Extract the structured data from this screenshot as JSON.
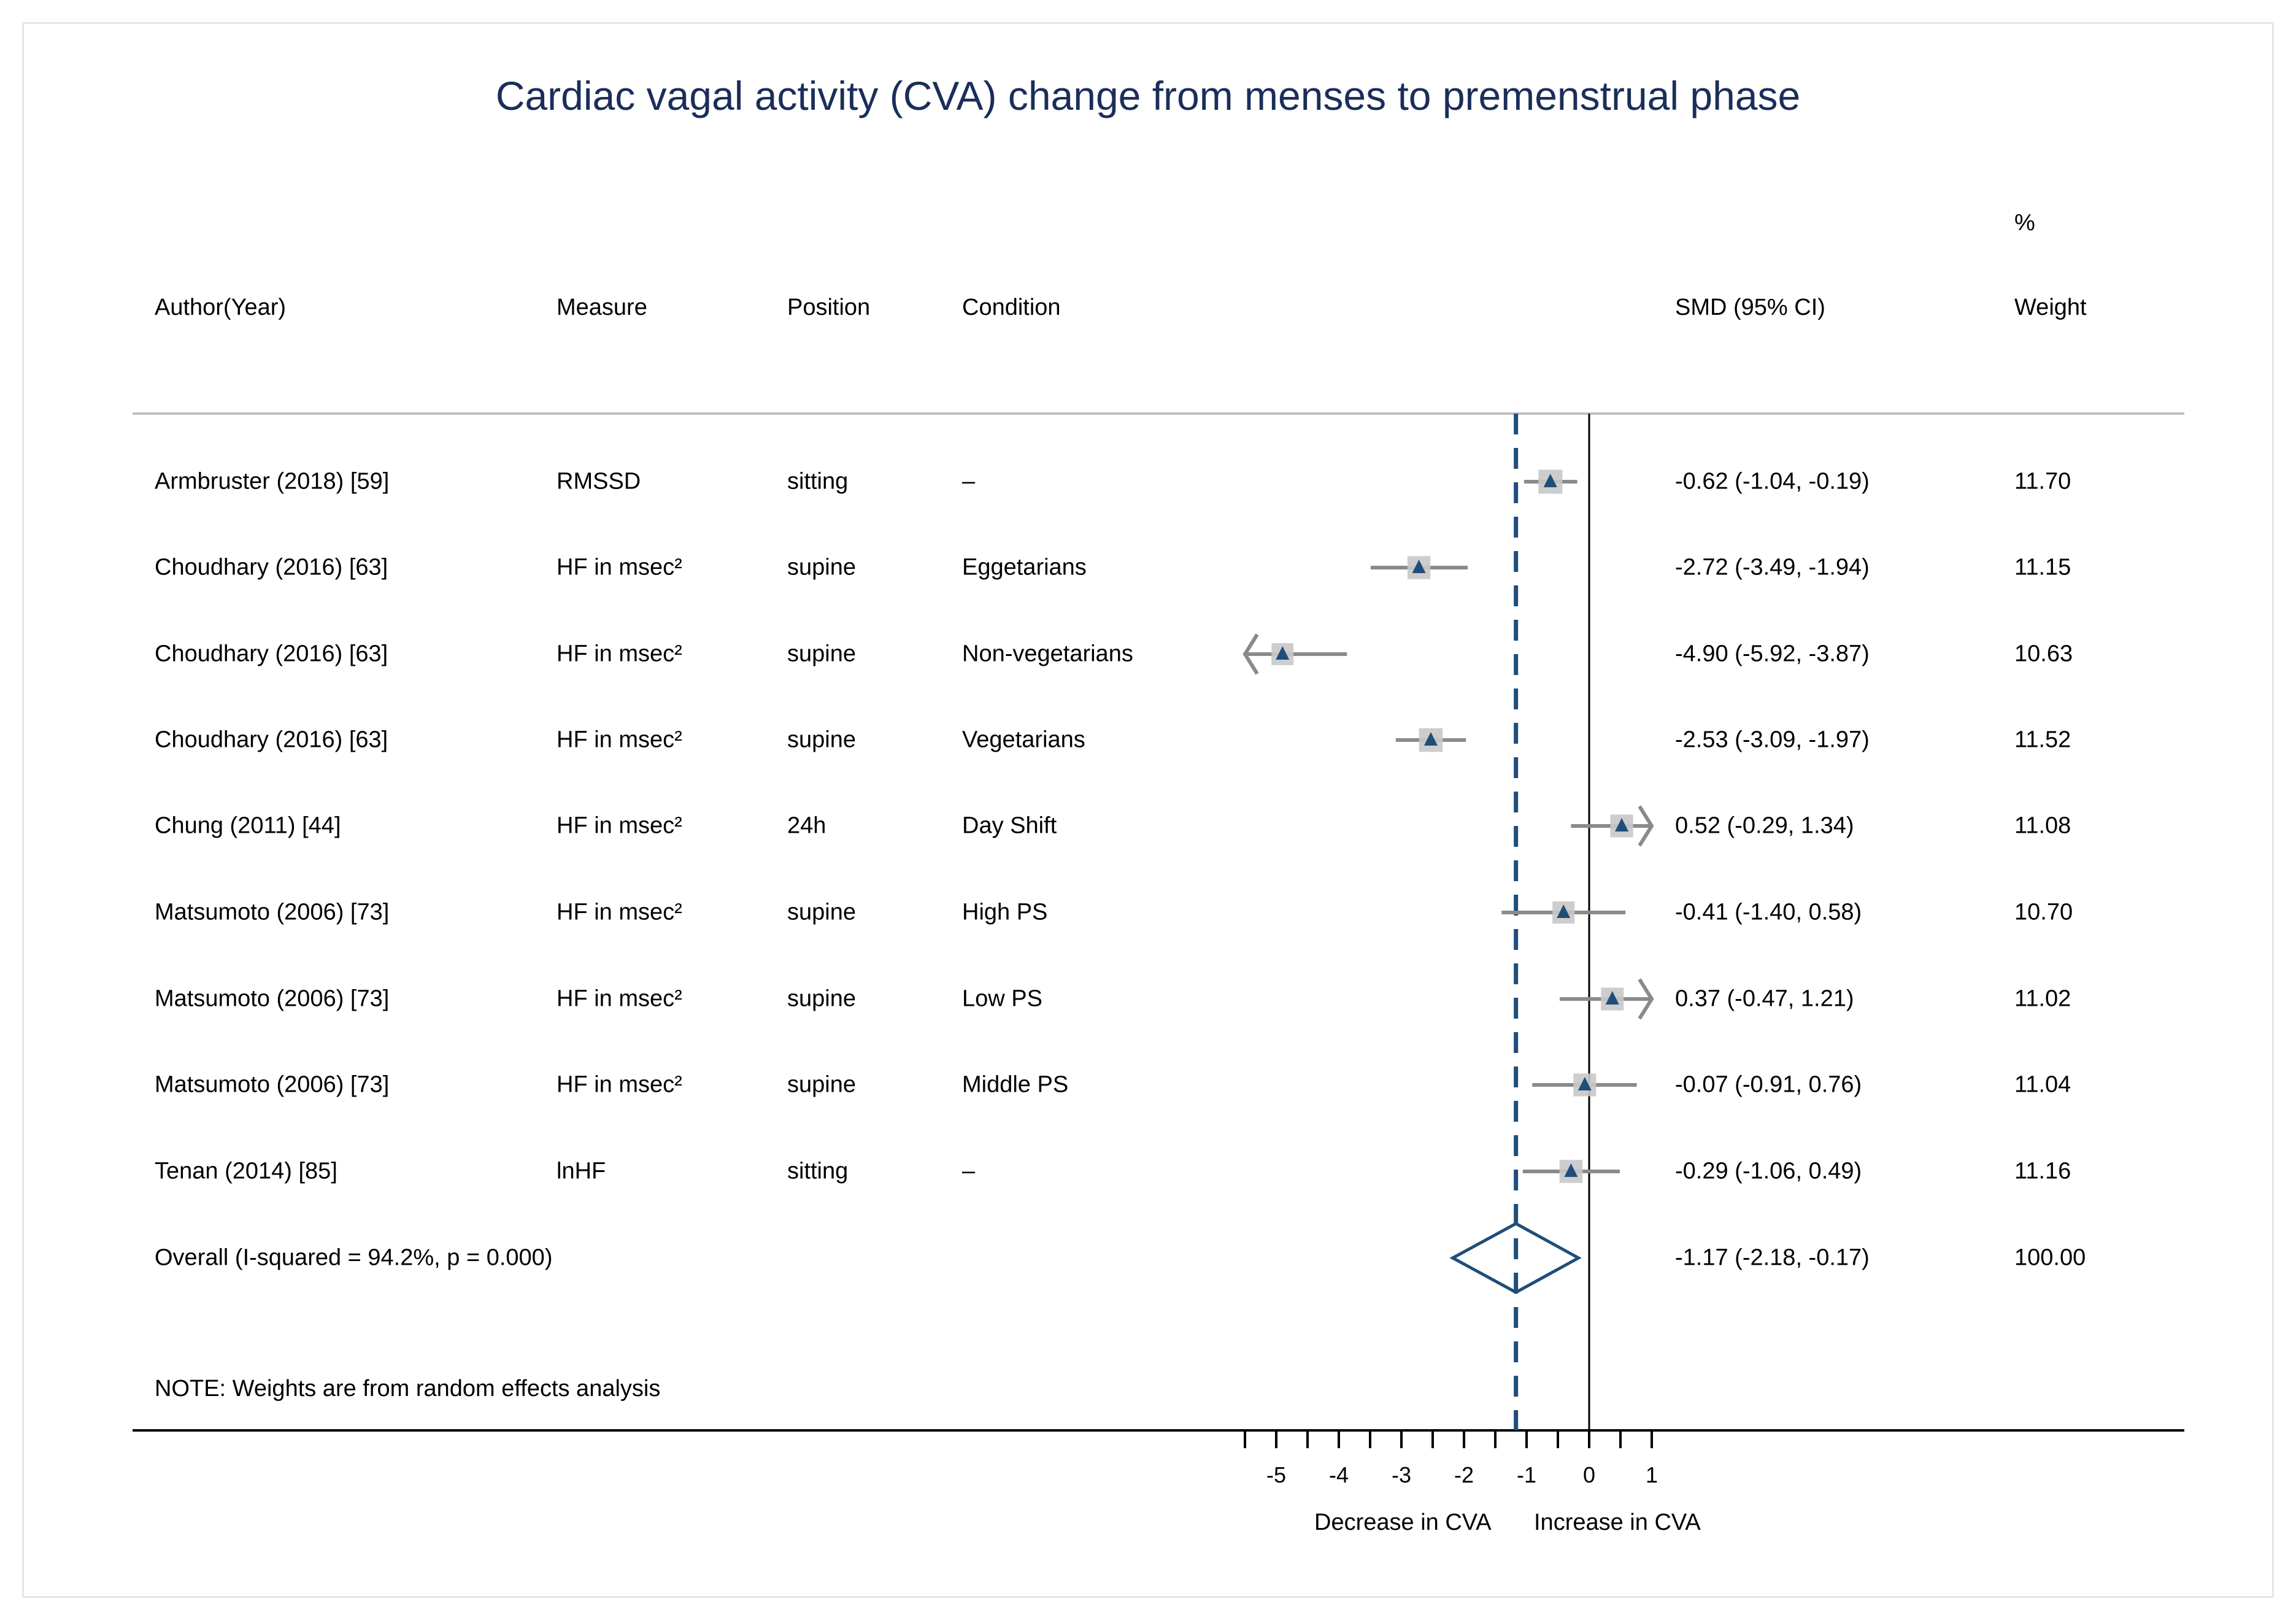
{
  "title": "Cardiac vagal activity (CVA) change from menses to premenstrual phase",
  "headers": {
    "author": "Author(Year)",
    "measure": "Measure",
    "position": "Position",
    "condition": "Condition",
    "smd": "SMD (95% CI)",
    "weight_pct": "%",
    "weight": "Weight"
  },
  "rows": [
    {
      "author": "Armbruster (2018) [59]",
      "measure": "RMSSD",
      "position": "sitting",
      "condition": "–",
      "smd_text": "-0.62 (-1.04, -0.19)",
      "weight": "11.70"
    },
    {
      "author": "Choudhary (2016) [63]",
      "measure": "HF in msec²",
      "position": "supine",
      "condition": "Eggetarians",
      "smd_text": "-2.72 (-3.49, -1.94)",
      "weight": "11.15"
    },
    {
      "author": "Choudhary (2016) [63]",
      "measure": "HF in msec²",
      "position": "supine",
      "condition": "Non-vegetarians",
      "smd_text": "-4.90 (-5.92, -3.87)",
      "weight": "10.63"
    },
    {
      "author": "Choudhary (2016) [63]",
      "measure": "HF in msec²",
      "position": "supine",
      "condition": "Vegetarians",
      "smd_text": "-2.53 (-3.09, -1.97)",
      "weight": "11.52"
    },
    {
      "author": "Chung (2011) [44]",
      "measure": "HF in msec²",
      "position": "24h",
      "condition": "Day Shift",
      "smd_text": "0.52 (-0.29, 1.34)",
      "weight": "11.08"
    },
    {
      "author": "Matsumoto (2006) [73]",
      "measure": "HF in msec²",
      "position": "supine",
      "condition": "High PS",
      "smd_text": "-0.41 (-1.40, 0.58)",
      "weight": "10.70"
    },
    {
      "author": "Matsumoto (2006) [73]",
      "measure": "HF in msec²",
      "position": "supine",
      "condition": "Low PS",
      "smd_text": "0.37 (-0.47, 1.21)",
      "weight": "11.02"
    },
    {
      "author": "Matsumoto (2006) [73]",
      "measure": "HF in msec²",
      "position": "supine",
      "condition": "Middle PS",
      "smd_text": "-0.07 (-0.91, 0.76)",
      "weight": "11.04"
    },
    {
      "author": "Tenan (2014) [85]",
      "measure": "lnHF",
      "position": "sitting",
      "condition": "–",
      "smd_text": "-0.29 (-1.06, 0.49)",
      "weight": "11.16"
    }
  ],
  "overall": {
    "label": "Overall  (I-squared = 94.2%, p = 0.000)",
    "smd_text": "-1.17 (-2.18, -0.17)",
    "weight": "100.00"
  },
  "note": "NOTE: Weights are from random effects analysis",
  "axis": {
    "decrease_label": "Decrease in CVA",
    "increase_label": "Increase in CVA"
  },
  "colors": {
    "title": "#1a2e5a",
    "marker": "#1f4e79",
    "box": "#c8c8c8",
    "ci_line": "#8a8a8a",
    "overall_line": "#1f4e79",
    "header_rule": "#c0c0c0"
  },
  "chart_data": {
    "type": "forest",
    "title": "Cardiac vagal activity (CVA) change from menses to premenstrual phase",
    "xlabel_left": "Decrease in CVA",
    "xlabel_right": "Increase in CVA",
    "xlim": [
      -5.5,
      1
    ],
    "xticks": [
      -5,
      -4,
      -3,
      -2,
      -1,
      0,
      1
    ],
    "null_line": 0,
    "overall_line": -1.17,
    "studies": [
      {
        "est": -0.62,
        "lo": -1.04,
        "hi": -0.19,
        "weight": 11.7
      },
      {
        "est": -2.72,
        "lo": -3.49,
        "hi": -1.94,
        "weight": 11.15
      },
      {
        "est": -4.9,
        "lo": -5.92,
        "hi": -3.87,
        "weight": 10.63
      },
      {
        "est": -2.53,
        "lo": -3.09,
        "hi": -1.97,
        "weight": 11.52
      },
      {
        "est": 0.52,
        "lo": -0.29,
        "hi": 1.34,
        "weight": 11.08
      },
      {
        "est": -0.41,
        "lo": -1.4,
        "hi": 0.58,
        "weight": 10.7
      },
      {
        "est": 0.37,
        "lo": -0.47,
        "hi": 1.21,
        "weight": 11.02
      },
      {
        "est": -0.07,
        "lo": -0.91,
        "hi": 0.76,
        "weight": 11.04
      },
      {
        "est": -0.29,
        "lo": -1.06,
        "hi": 0.49,
        "weight": 11.16
      }
    ],
    "overall": {
      "est": -1.17,
      "lo": -2.18,
      "hi": -0.17
    }
  }
}
